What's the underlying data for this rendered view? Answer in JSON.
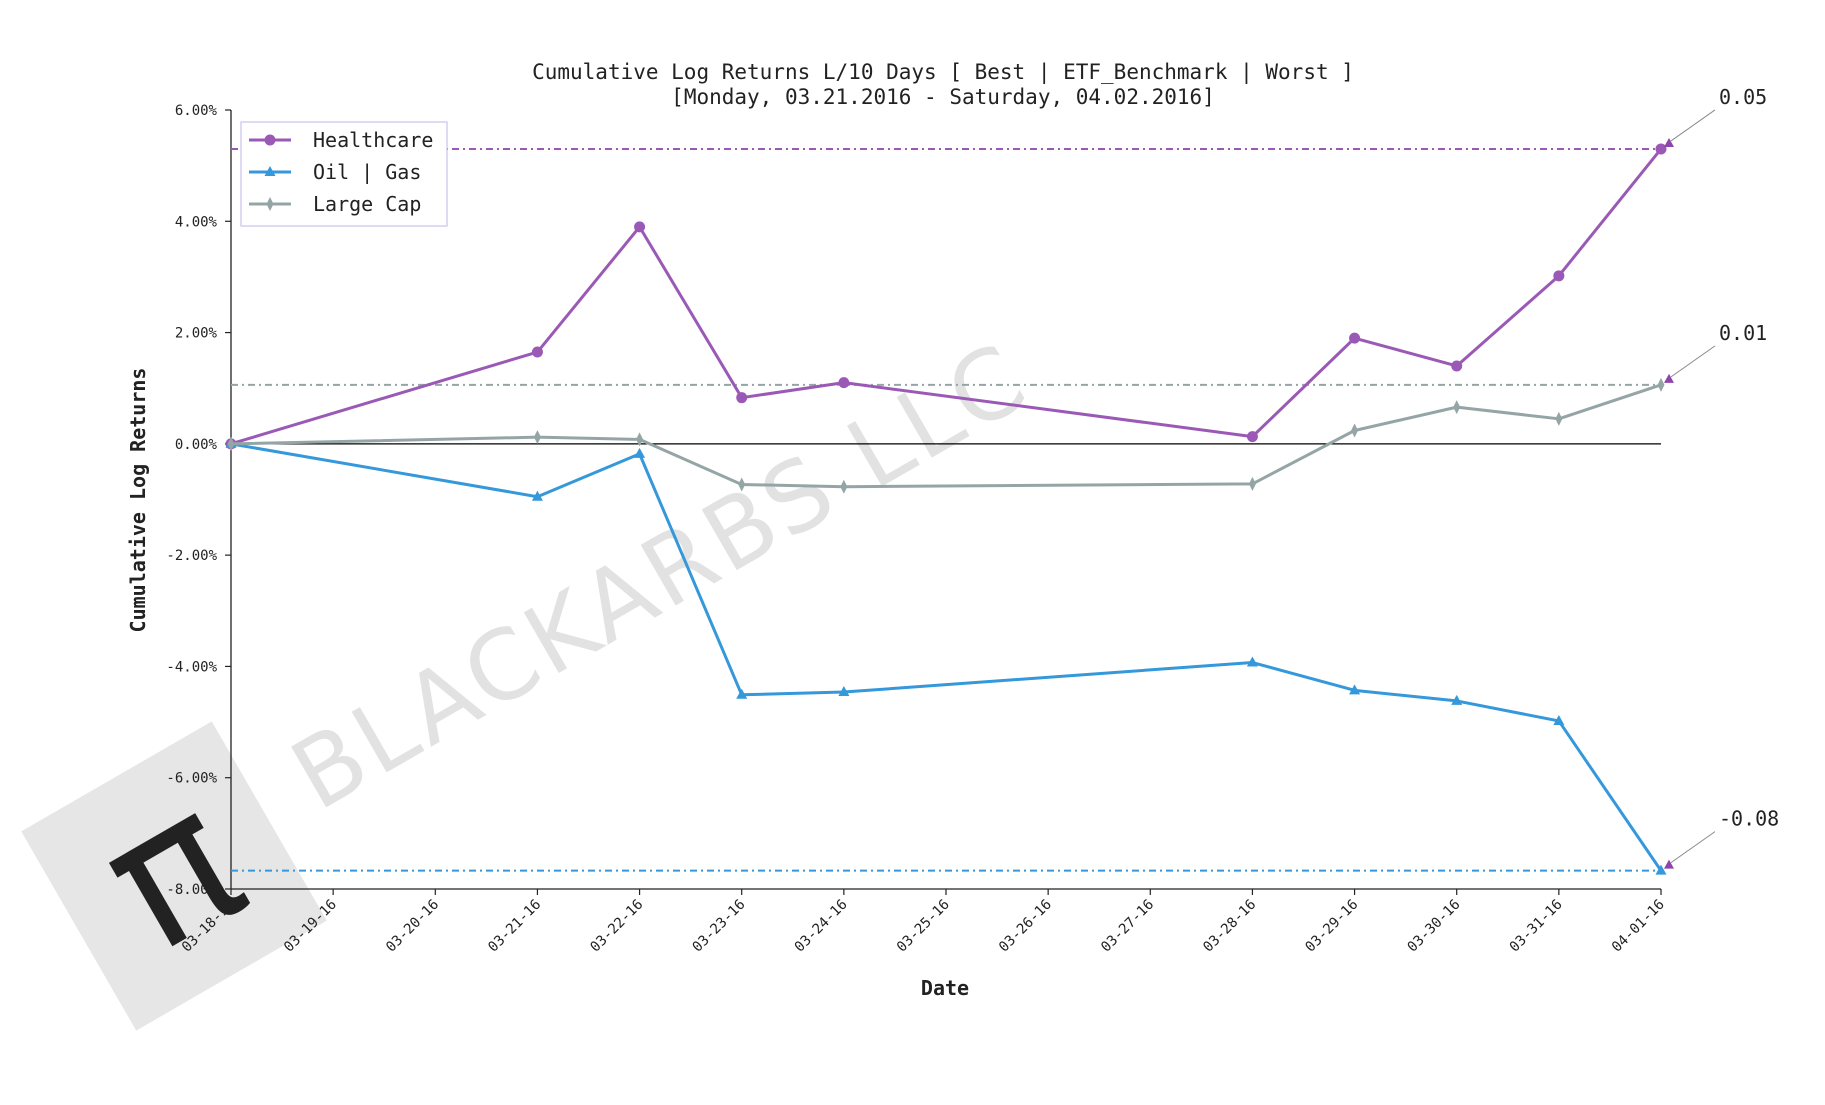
{
  "chart_data": {
    "type": "line",
    "title": "Cumulative Log Returns L/10 Days [ Best | ETF_Benchmark | Worst ]",
    "subtitle": "[Monday, 03.21.2016 - Saturday, 04.02.2016]",
    "xlabel": "Date",
    "ylabel": "Cumulative Log Returns",
    "x_ticks": [
      "03-18-16",
      "03-19-16",
      "03-20-16",
      "03-21-16",
      "03-22-16",
      "03-23-16",
      "03-24-16",
      "03-25-16",
      "03-26-16",
      "03-27-16",
      "03-28-16",
      "03-29-16",
      "03-30-16",
      "03-31-16",
      "04-01-16"
    ],
    "y_ticks": [
      "6.00%",
      "4.00%",
      "2.00%",
      "0.00%",
      "-2.00%",
      "-4.00%",
      "-6.00%",
      "-8.00%"
    ],
    "y_tick_values": [
      0.06,
      0.04,
      0.02,
      0,
      -0.02,
      -0.04,
      -0.06,
      -0.08
    ],
    "ylim": [
      -0.08,
      0.06
    ],
    "x_range": [
      "03-18-16",
      "04-01-16"
    ],
    "grid": false,
    "legend_position": "top-left",
    "series": [
      {
        "name": "Healthcare",
        "color": "#9b59b6",
        "marker": "circle",
        "x": [
          "03-18-16",
          "03-21-16",
          "03-22-16",
          "03-23-16",
          "03-24-16",
          "03-28-16",
          "03-29-16",
          "03-30-16",
          "03-31-16",
          "04-01-16"
        ],
        "values": [
          0.0,
          0.0165,
          0.039,
          0.0083,
          0.011,
          0.0013,
          0.019,
          0.014,
          0.0302,
          0.053
        ],
        "end_label": "0.05"
      },
      {
        "name": "Oil | Gas",
        "color": "#3498db",
        "marker": "triangle",
        "x": [
          "03-18-16",
          "03-21-16",
          "03-22-16",
          "03-23-16",
          "03-24-16",
          "03-28-16",
          "03-29-16",
          "03-30-16",
          "03-31-16",
          "04-01-16"
        ],
        "values": [
          0.0,
          -0.0095,
          -0.0018,
          -0.0451,
          -0.0446,
          -0.0393,
          -0.0443,
          -0.0462,
          -0.0498,
          -0.0767
        ],
        "end_label": "-0.08"
      },
      {
        "name": "Large Cap",
        "color": "#95a5a6",
        "marker": "thin_diamond",
        "x": [
          "03-18-16",
          "03-21-16",
          "03-22-16",
          "03-23-16",
          "03-24-16",
          "03-28-16",
          "03-29-16",
          "03-30-16",
          "03-31-16",
          "04-01-16"
        ],
        "values": [
          0.0,
          0.0012,
          0.0008,
          -0.0073,
          -0.0077,
          -0.0072,
          0.0024,
          0.0066,
          0.0045,
          0.0106
        ],
        "end_label": "0.01"
      }
    ],
    "watermark": "BLACKARBS LLC"
  }
}
